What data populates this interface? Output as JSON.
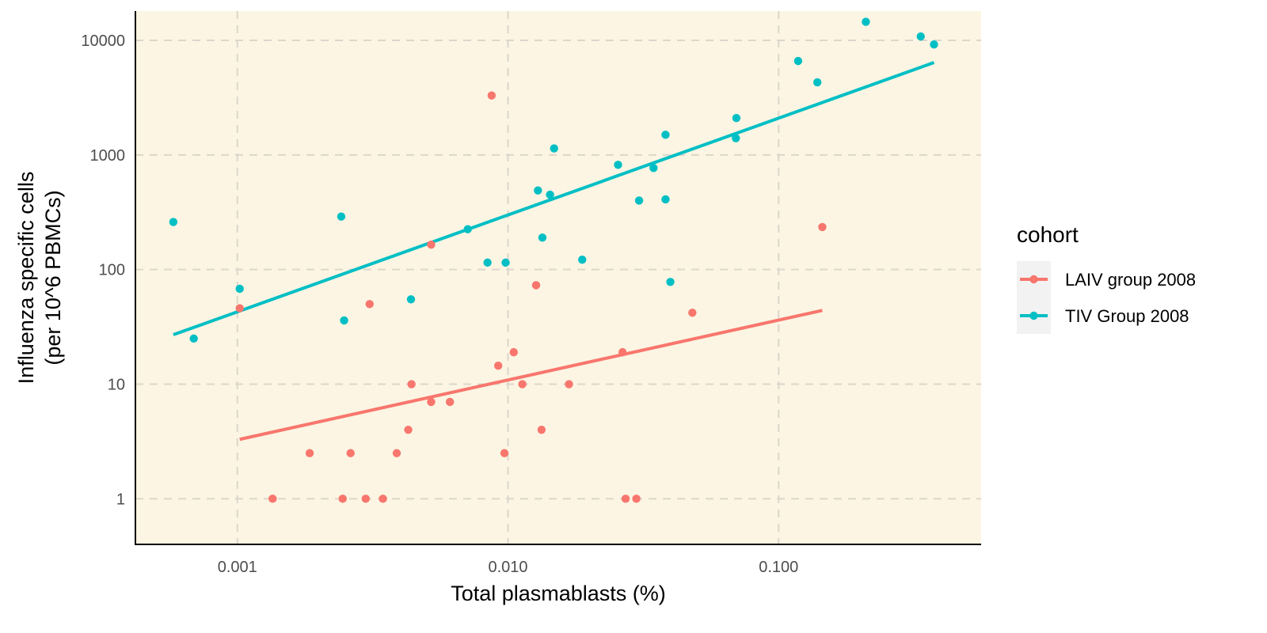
{
  "chart_data": {
    "type": "scatter",
    "xlabel": "Total plasmablasts (%)",
    "ylabel_lines": [
      "Influenza specific cells",
      "(per 10^6 PBMCs)"
    ],
    "x_scale": "log10",
    "y_scale": "log10",
    "xlim": [
      0.00042,
      0.56
    ],
    "ylim": [
      0.4,
      18000
    ],
    "x_ticks": [
      {
        "value": 0.001,
        "label": "0.001"
      },
      {
        "value": 0.01,
        "label": "0.010"
      },
      {
        "value": 0.1,
        "label": "0.100"
      }
    ],
    "y_ticks": [
      {
        "value": 1,
        "label": "1"
      },
      {
        "value": 10,
        "label": "10"
      },
      {
        "value": 100,
        "label": "100"
      },
      {
        "value": 1000,
        "label": "1000"
      },
      {
        "value": 10000,
        "label": "10000"
      }
    ],
    "grid": true,
    "legend": {
      "title": "cohort",
      "position": "right"
    },
    "series": [
      {
        "name": "LAIV group 2008",
        "color": "#F8766D",
        "points": [
          {
            "x": 0.00102,
            "y": 46
          },
          {
            "x": 0.00135,
            "y": 1
          },
          {
            "x": 0.00185,
            "y": 2.5
          },
          {
            "x": 0.00245,
            "y": 1
          },
          {
            "x": 0.00262,
            "y": 2.5
          },
          {
            "x": 0.00298,
            "y": 1
          },
          {
            "x": 0.00308,
            "y": 50
          },
          {
            "x": 0.00345,
            "y": 1
          },
          {
            "x": 0.00388,
            "y": 2.5
          },
          {
            "x": 0.00428,
            "y": 4
          },
          {
            "x": 0.0044,
            "y": 10
          },
          {
            "x": 0.0052,
            "y": 7
          },
          {
            "x": 0.0052,
            "y": 165
          },
          {
            "x": 0.0061,
            "y": 7
          },
          {
            "x": 0.0087,
            "y": 3300
          },
          {
            "x": 0.0092,
            "y": 14.5
          },
          {
            "x": 0.0097,
            "y": 2.5
          },
          {
            "x": 0.0105,
            "y": 19
          },
          {
            "x": 0.0113,
            "y": 10
          },
          {
            "x": 0.0127,
            "y": 73
          },
          {
            "x": 0.0133,
            "y": 4
          },
          {
            "x": 0.0168,
            "y": 10
          },
          {
            "x": 0.0265,
            "y": 19
          },
          {
            "x": 0.0272,
            "y": 1
          },
          {
            "x": 0.0298,
            "y": 1
          },
          {
            "x": 0.048,
            "y": 42
          },
          {
            "x": 0.145,
            "y": 235
          }
        ],
        "fit": {
          "x": [
            0.00102,
            0.145
          ],
          "y": [
            3.3,
            44
          ]
        }
      },
      {
        "name": "TIV Group 2008",
        "color": "#00BFC4",
        "points": [
          {
            "x": 0.00058,
            "y": 260
          },
          {
            "x": 0.00069,
            "y": 25
          },
          {
            "x": 0.00102,
            "y": 68
          },
          {
            "x": 0.00242,
            "y": 290
          },
          {
            "x": 0.00248,
            "y": 36
          },
          {
            "x": 0.00438,
            "y": 55
          },
          {
            "x": 0.0071,
            "y": 225
          },
          {
            "x": 0.0084,
            "y": 115
          },
          {
            "x": 0.0098,
            "y": 115
          },
          {
            "x": 0.0129,
            "y": 490
          },
          {
            "x": 0.0134,
            "y": 190
          },
          {
            "x": 0.0143,
            "y": 450
          },
          {
            "x": 0.0148,
            "y": 1140
          },
          {
            "x": 0.0188,
            "y": 122
          },
          {
            "x": 0.0255,
            "y": 820
          },
          {
            "x": 0.0305,
            "y": 400
          },
          {
            "x": 0.0345,
            "y": 770
          },
          {
            "x": 0.0382,
            "y": 1500
          },
          {
            "x": 0.0382,
            "y": 410
          },
          {
            "x": 0.0398,
            "y": 78
          },
          {
            "x": 0.0695,
            "y": 1400
          },
          {
            "x": 0.0698,
            "y": 2100
          },
          {
            "x": 0.118,
            "y": 6600
          },
          {
            "x": 0.139,
            "y": 4300
          },
          {
            "x": 0.21,
            "y": 14500
          },
          {
            "x": 0.335,
            "y": 10800
          },
          {
            "x": 0.375,
            "y": 9200
          }
        ],
        "fit": {
          "x": [
            0.00058,
            0.375
          ],
          "y": [
            27,
            6400
          ]
        }
      }
    ]
  }
}
